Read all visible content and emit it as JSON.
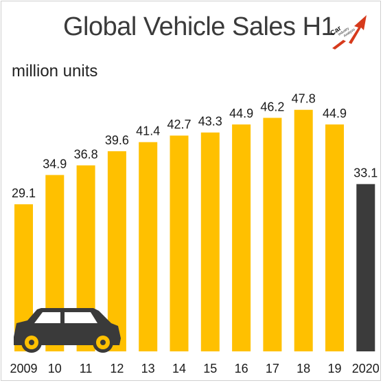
{
  "chart_data": {
    "type": "bar",
    "title": "Global Vehicle Sales H1",
    "ylabel": "million units",
    "categories": [
      "2009",
      "10",
      "11",
      "12",
      "13",
      "14",
      "15",
      "16",
      "17",
      "18",
      "19",
      "2020"
    ],
    "values": [
      29.1,
      34.9,
      36.8,
      39.6,
      41.4,
      42.7,
      43.3,
      44.9,
      46.2,
      47.8,
      44.9,
      33.1
    ],
    "value_labels": [
      "29.1",
      "34.9",
      "36.8",
      "39.6",
      "41.4",
      "42.7",
      "43.3",
      "44.9",
      "46.2",
      "47.8",
      "44.9",
      "33.1"
    ],
    "highlight_category": "2020",
    "colors": {
      "bar": "#FFC000",
      "highlight": "#3B3B3B"
    },
    "ylim": [
      0,
      50
    ],
    "grid": false,
    "legend": "none"
  },
  "logo": {
    "icon": "car-industry-analysis-logo-icon",
    "text": "Car Industry Analysis",
    "colors": [
      "#1a1a1a",
      "#d63a1c"
    ]
  },
  "decoration": {
    "icon": "car-silhouette-icon"
  }
}
